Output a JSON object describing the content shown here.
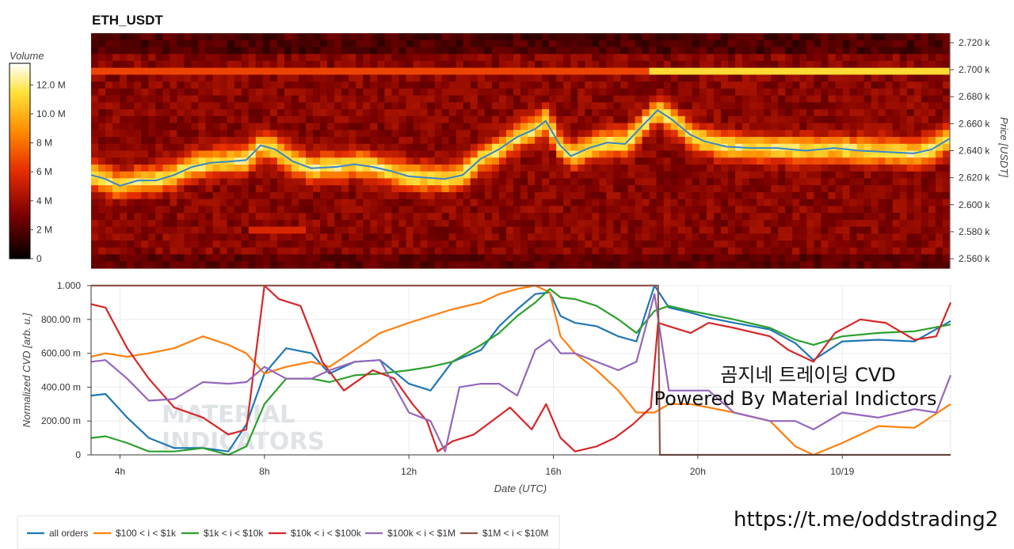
{
  "header": {
    "title": "ETH_USDT"
  },
  "colorbar": {
    "label": "Volume",
    "ticks": [
      "0",
      "2 M",
      "4 M",
      "6 M",
      "8 M",
      "10.0 M",
      "12.0 M"
    ],
    "max": 13.5
  },
  "heatmap_axis": {
    "ylabel": "Price [USDT]",
    "ticks": [
      "2.560 k",
      "2.580 k",
      "2.600 k",
      "2.620 k",
      "2.640 k",
      "2.660 k",
      "2.680 k",
      "2.700 k",
      "2.720 k"
    ]
  },
  "cvd_axis": {
    "ylabel": "Normalized CVD [arb. u.]",
    "xlabel": "Date (UTC)",
    "yticks": [
      "0",
      "200.00 m",
      "400.00 m",
      "600.00 m",
      "800.00 m",
      "1.000"
    ],
    "xticks": [
      "4h",
      "8h",
      "12h",
      "16h",
      "20h",
      "10/19"
    ]
  },
  "overlay": {
    "line1": "곰지네 트레이딩 CVD",
    "line2": "Powered By Material Indictors",
    "watermark1": "MATERIAL",
    "watermark2": "INDICATORS",
    "url": "https://t.me/oddstrading2"
  },
  "legend": [
    {
      "label": "all orders",
      "color": "#1f77b4"
    },
    {
      "label": "$100 < i < $1k",
      "color": "#ff7f0e"
    },
    {
      "label": "$1k < i < $10k",
      "color": "#2ca02c"
    },
    {
      "label": "$10k < i < $100k",
      "color": "#d62728"
    },
    {
      "label": "$100k < i < $1M",
      "color": "#9467bd"
    },
    {
      "label": "$1M < i < $10M",
      "color": "#8c564b"
    }
  ],
  "chart_data": [
    {
      "type": "heatmap",
      "title": "ETH_USDT",
      "x_range_hours": [
        3.2,
        27.0
      ],
      "ylim": [
        2553,
        2727
      ],
      "price_line": {
        "name": "all orders",
        "x": [
          3.2,
          3.6,
          4.0,
          4.5,
          5.0,
          5.5,
          6.0,
          6.5,
          7.0,
          7.5,
          7.9,
          8.3,
          8.8,
          9.3,
          10.0,
          10.5,
          11.0,
          11.5,
          12.0,
          12.5,
          13.0,
          13.5,
          14.0,
          14.5,
          15.0,
          15.5,
          15.8,
          16.2,
          16.5,
          17.0,
          17.5,
          18.0,
          18.5,
          18.9,
          19.3,
          19.8,
          20.2,
          20.8,
          21.5,
          22.2,
          23.0,
          23.8,
          24.5,
          25.3,
          26.0,
          26.5,
          27.0
        ],
        "y": [
          2622,
          2619,
          2614,
          2618,
          2618,
          2622,
          2628,
          2631,
          2632,
          2633,
          2644,
          2641,
          2632,
          2627,
          2628,
          2630,
          2628,
          2625,
          2621,
          2620,
          2619,
          2622,
          2634,
          2641,
          2650,
          2656,
          2662,
          2644,
          2636,
          2642,
          2646,
          2645,
          2659,
          2670,
          2663,
          2652,
          2647,
          2643,
          2642,
          2642,
          2640,
          2642,
          2640,
          2639,
          2638,
          2641,
          2649
        ]
      }
    },
    {
      "type": "line",
      "xlabel": "Date (UTC)",
      "ylabel": "Normalized CVD [arb. u.]",
      "ylim": [
        0,
        1.0
      ],
      "xlim_hours": [
        3.2,
        27.0
      ],
      "series": [
        {
          "name": "all orders",
          "x": [
            3.2,
            3.6,
            4.2,
            4.8,
            5.5,
            6.3,
            7.0,
            7.5,
            8.0,
            8.6,
            9.3,
            9.8,
            10.5,
            11.2,
            12.0,
            12.6,
            13.2,
            14.0,
            14.5,
            15.0,
            15.5,
            15.9,
            16.2,
            16.6,
            17.2,
            17.8,
            18.3,
            18.8,
            19.2,
            19.8,
            20.3,
            21.0,
            22.0,
            22.7,
            23.2,
            24.0,
            25.0,
            26.0,
            27.0
          ],
          "y": [
            0.35,
            0.36,
            0.22,
            0.1,
            0.04,
            0.04,
            0.02,
            0.18,
            0.48,
            0.63,
            0.6,
            0.48,
            0.55,
            0.56,
            0.42,
            0.38,
            0.55,
            0.62,
            0.76,
            0.86,
            0.95,
            0.96,
            0.82,
            0.78,
            0.76,
            0.7,
            0.67,
            1.0,
            0.87,
            0.84,
            0.81,
            0.78,
            0.74,
            0.66,
            0.56,
            0.67,
            0.68,
            0.67,
            0.79
          ]
        },
        {
          "name": "$100 < i < $1k",
          "x": [
            3.2,
            3.6,
            4.2,
            4.8,
            5.5,
            6.3,
            7.0,
            7.5,
            8.0,
            8.6,
            9.3,
            9.8,
            10.5,
            11.2,
            12.0,
            12.6,
            13.2,
            14.0,
            14.5,
            15.0,
            15.5,
            15.9,
            16.2,
            16.6,
            17.2,
            17.8,
            18.3,
            18.8,
            19.2,
            19.8,
            20.3,
            21.0,
            22.0,
            22.7,
            23.2,
            24.0,
            25.0,
            26.0,
            27.0
          ],
          "y": [
            0.58,
            0.6,
            0.58,
            0.6,
            0.63,
            0.7,
            0.65,
            0.6,
            0.48,
            0.52,
            0.55,
            0.52,
            0.62,
            0.72,
            0.78,
            0.82,
            0.86,
            0.9,
            0.95,
            0.98,
            1.0,
            0.96,
            0.7,
            0.6,
            0.5,
            0.38,
            0.25,
            0.25,
            0.3,
            0.3,
            0.28,
            0.25,
            0.2,
            0.05,
            0.0,
            0.07,
            0.17,
            0.16,
            0.3
          ]
        },
        {
          "name": "$1k < i < $10k",
          "x": [
            3.2,
            3.6,
            4.2,
            4.8,
            5.5,
            6.3,
            7.0,
            7.5,
            8.0,
            8.6,
            9.3,
            9.8,
            10.5,
            11.2,
            12.0,
            12.6,
            13.2,
            14.0,
            14.5,
            15.0,
            15.5,
            15.9,
            16.2,
            16.6,
            17.2,
            17.8,
            18.3,
            18.8,
            19.2,
            19.8,
            20.3,
            21.0,
            22.0,
            22.7,
            23.2,
            24.0,
            25.0,
            26.0,
            27.0
          ],
          "y": [
            0.1,
            0.11,
            0.07,
            0.02,
            0.02,
            0.04,
            0.0,
            0.05,
            0.3,
            0.45,
            0.45,
            0.43,
            0.47,
            0.48,
            0.5,
            0.52,
            0.55,
            0.65,
            0.72,
            0.82,
            0.9,
            0.98,
            0.93,
            0.92,
            0.88,
            0.8,
            0.72,
            0.85,
            0.88,
            0.85,
            0.83,
            0.8,
            0.75,
            0.68,
            0.65,
            0.7,
            0.72,
            0.73,
            0.77
          ]
        },
        {
          "name": "$10k < i < $100k",
          "x": [
            3.2,
            3.6,
            4.2,
            4.8,
            5.5,
            6.3,
            7.0,
            7.5,
            8.0,
            8.4,
            9.0,
            9.6,
            10.2,
            11.0,
            11.6,
            12.1,
            12.5,
            12.8,
            13.2,
            13.8,
            14.3,
            14.8,
            15.4,
            15.8,
            16.2,
            16.6,
            17.2,
            17.7,
            18.2,
            18.7,
            18.9,
            19.2,
            19.8,
            20.3,
            21.0,
            22.0,
            22.5,
            23.2,
            23.8,
            24.5,
            25.2,
            26.0,
            26.6,
            27.0
          ],
          "y": [
            0.89,
            0.87,
            0.63,
            0.45,
            0.28,
            0.22,
            0.12,
            0.15,
            1.0,
            0.92,
            0.88,
            0.55,
            0.38,
            0.5,
            0.45,
            0.3,
            0.2,
            0.02,
            0.08,
            0.12,
            0.2,
            0.28,
            0.15,
            0.3,
            0.1,
            0.02,
            0.05,
            0.1,
            0.18,
            0.28,
            0.78,
            0.76,
            0.72,
            0.78,
            0.75,
            0.7,
            0.62,
            0.55,
            0.72,
            0.8,
            0.78,
            0.68,
            0.7,
            0.9
          ]
        },
        {
          "name": "$100k < i < $1M",
          "x": [
            3.2,
            3.6,
            4.2,
            4.8,
            5.5,
            6.3,
            7.0,
            7.5,
            8.0,
            8.6,
            9.3,
            9.8,
            10.5,
            11.2,
            12.0,
            12.6,
            13.0,
            13.4,
            14.0,
            14.5,
            15.0,
            15.5,
            15.9,
            16.2,
            16.6,
            17.2,
            17.8,
            18.3,
            18.8,
            19.2,
            19.8,
            20.3,
            21.0,
            22.0,
            22.7,
            23.2,
            24.0,
            25.0,
            26.0,
            26.6,
            27.0
          ],
          "y": [
            0.55,
            0.56,
            0.45,
            0.32,
            0.33,
            0.43,
            0.42,
            0.43,
            0.52,
            0.45,
            0.45,
            0.5,
            0.55,
            0.56,
            0.25,
            0.2,
            0.02,
            0.4,
            0.42,
            0.42,
            0.35,
            0.62,
            0.68,
            0.6,
            0.6,
            0.55,
            0.5,
            0.55,
            0.95,
            0.38,
            0.38,
            0.38,
            0.25,
            0.2,
            0.2,
            0.15,
            0.25,
            0.22,
            0.27,
            0.25,
            0.47
          ]
        },
        {
          "name": "$1M < i < $10M",
          "x": [
            3.2,
            18.9,
            18.95,
            27.0
          ],
          "y": [
            1.0,
            1.0,
            0.0,
            0.0
          ]
        }
      ]
    }
  ]
}
